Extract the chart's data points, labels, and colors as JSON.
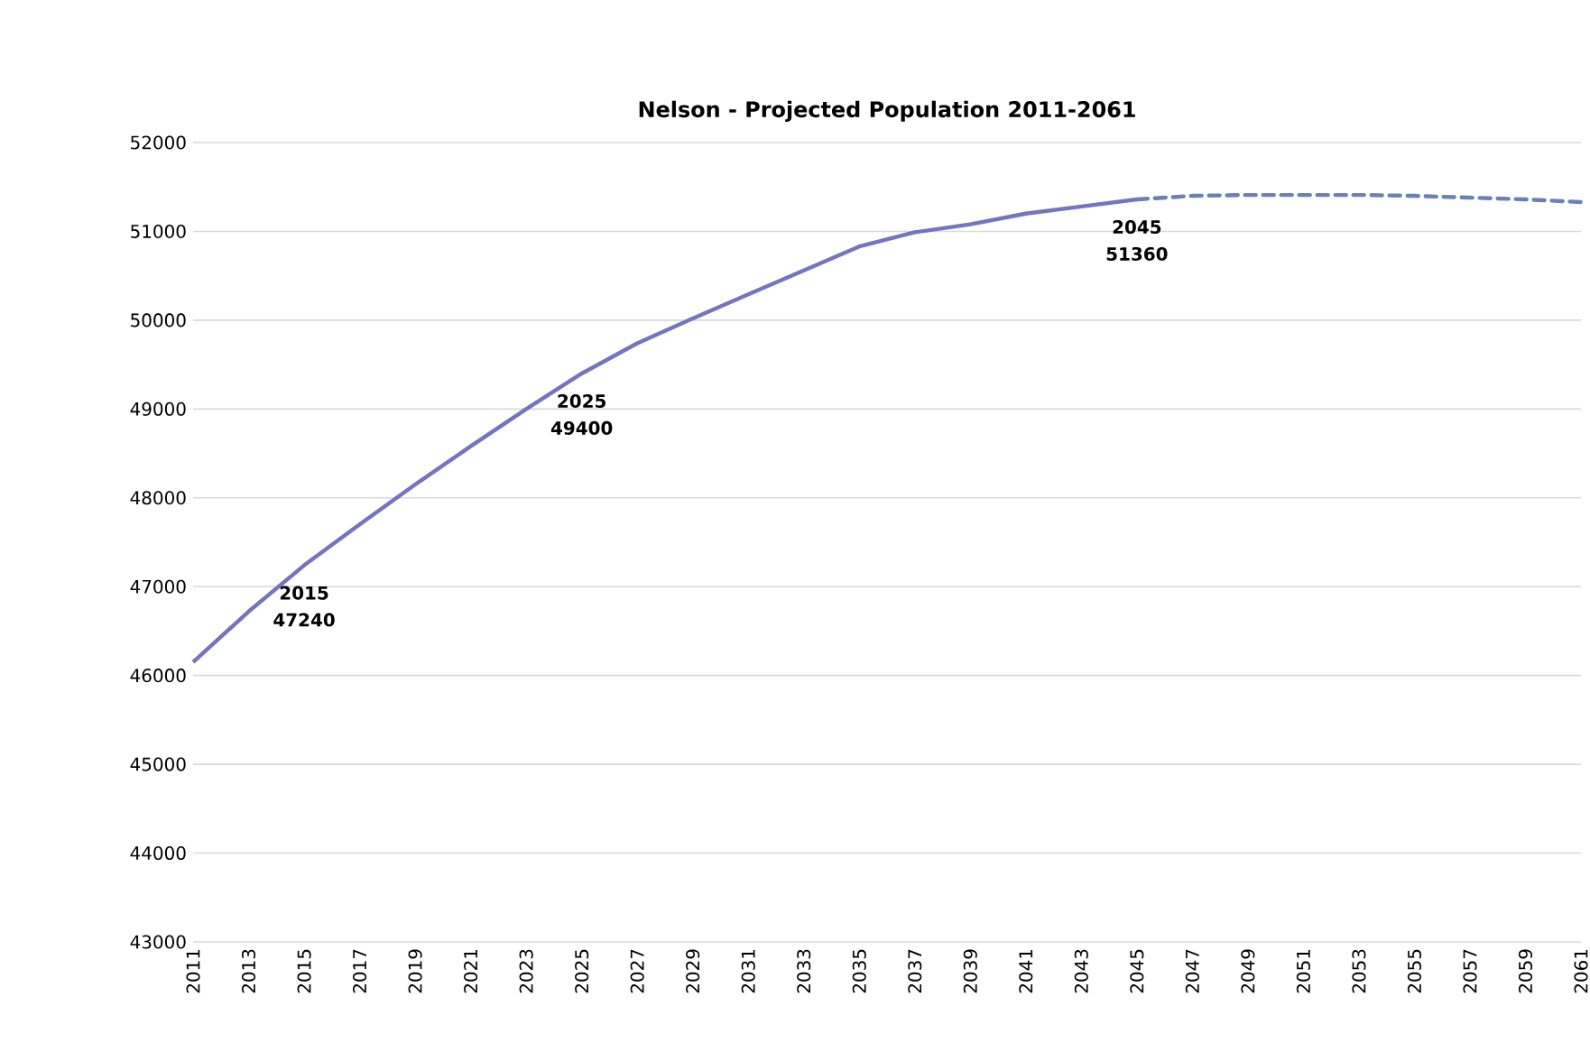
{
  "chart_data": {
    "type": "line",
    "title": "Nelson - Projected Population 2011-2061",
    "series": [
      {
        "color": "#7474c0",
        "line_style": "solid",
        "x": [
          2011,
          2013,
          2015,
          2017,
          2019,
          2021,
          2023,
          2025,
          2027,
          2029,
          2031,
          2033,
          2035,
          2037,
          2039,
          2041,
          2043,
          2045
        ],
        "values": [
          46150,
          46720,
          47240,
          47700,
          48150,
          48580,
          49000,
          49400,
          49740,
          50020,
          50290,
          50560,
          50830,
          50990,
          51080,
          51200,
          51280,
          51360
        ]
      },
      {
        "color": "#6b7fb8",
        "line_style": "dashed",
        "x": [
          2045,
          2047,
          2049,
          2051,
          2053,
          2055,
          2057,
          2059,
          2061
        ],
        "values": [
          51360,
          51400,
          51410,
          51410,
          51410,
          51400,
          51380,
          51360,
          51330
        ]
      }
    ],
    "annotations": [
      {
        "text": "2015 47240",
        "x": 2015,
        "y": 47240
      },
      {
        "text": "2025 49400",
        "x": 2025,
        "y": 49400
      },
      {
        "text": "2045 51360",
        "x": 2045,
        "y": 51360
      }
    ],
    "xlim": [
      2011,
      2061
    ],
    "xticks": [
      2011,
      2013,
      2015,
      2017,
      2019,
      2021,
      2023,
      2025,
      2027,
      2029,
      2031,
      2033,
      2035,
      2037,
      2039,
      2041,
      2043,
      2045,
      2047,
      2049,
      2051,
      2053,
      2055,
      2057,
      2059,
      2061
    ],
    "ylim": [
      43000,
      52000
    ],
    "yticks": [
      43000,
      44000,
      45000,
      46000,
      47000,
      48000,
      49000,
      50000,
      51000,
      52000
    ],
    "grid": "y",
    "marker": "none"
  }
}
